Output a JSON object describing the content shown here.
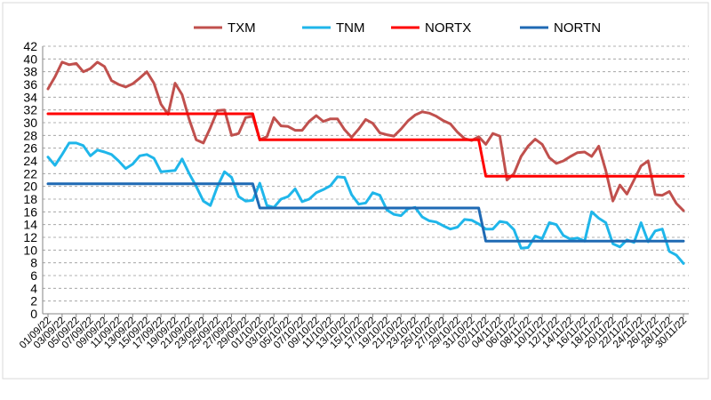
{
  "chart_data": {
    "type": "line",
    "title": "",
    "xlabel": "",
    "ylabel": "",
    "ylim": [
      0,
      42
    ],
    "yticks": [
      0,
      2,
      4,
      6,
      8,
      10,
      12,
      14,
      16,
      18,
      20,
      22,
      24,
      26,
      28,
      30,
      32,
      34,
      36,
      38,
      40,
      42
    ],
    "grid": "horizontal dashed",
    "legend_position": "top",
    "x_ticks": [
      "01/09/22",
      "03/09/22",
      "05/09/22",
      "07/09/22",
      "09/09/22",
      "11/09/22",
      "13/09/22",
      "15/09/22",
      "17/09/22",
      "19/09/22",
      "21/09/22",
      "23/09/22",
      "25/09/22",
      "27/09/22",
      "29/09/22",
      "01/10/22",
      "03/10/22",
      "05/10/22",
      "07/10/22",
      "09/10/22",
      "11/10/22",
      "13/10/22",
      "15/10/22",
      "17/10/22",
      "19/10/22",
      "21/10/22",
      "23/10/22",
      "25/10/22",
      "27/10/22",
      "29/10/22",
      "31/10/22",
      "02/11/22",
      "04/11/22",
      "06/11/22",
      "08/11/22",
      "10/11/22",
      "12/11/22",
      "14/11/22",
      "16/11/22",
      "18/11/22",
      "20/11/22",
      "22/11/22",
      "24/11/22",
      "26/11/22",
      "28/11/22",
      "30/11/22"
    ],
    "x_start": "01/09/22",
    "x_step_days": 1,
    "series": [
      {
        "name": "TXM",
        "color": "#c0504d",
        "width": 3,
        "values": [
          35.3,
          37.2,
          39.5,
          39.1,
          39.3,
          38.0,
          38.5,
          39.5,
          38.8,
          36.6,
          36.0,
          35.6,
          36.1,
          37.0,
          38.0,
          36.2,
          32.9,
          31.3,
          36.2,
          34.4,
          30.5,
          27.3,
          26.8,
          29.2,
          31.9,
          32.0,
          28.0,
          28.3,
          30.8,
          31.0,
          27.3,
          27.8,
          30.8,
          29.5,
          29.4,
          28.8,
          28.8,
          30.2,
          31.1,
          30.2,
          30.6,
          30.6,
          28.9,
          27.7,
          29.0,
          30.5,
          29.9,
          28.4,
          28.1,
          27.9,
          29.0,
          30.3,
          31.2,
          31.7,
          31.5,
          31.0,
          30.3,
          29.8,
          28.5,
          27.5,
          27.2,
          27.8,
          26.6,
          28.3,
          27.9,
          21.0,
          22.0,
          24.7,
          26.3,
          27.4,
          26.6,
          24.5,
          23.6,
          24.0,
          24.7,
          25.3,
          25.4,
          24.7,
          26.3,
          22.5,
          17.7,
          20.2,
          18.8,
          21.0,
          23.2,
          24.0,
          18.7,
          18.6,
          19.2,
          17.3,
          16.2
        ]
      },
      {
        "name": "TNM",
        "color": "#1fb6ea",
        "width": 3,
        "values": [
          24.6,
          23.3,
          25.0,
          26.8,
          26.8,
          26.4,
          24.8,
          25.7,
          25.4,
          25.0,
          24.0,
          22.8,
          23.5,
          24.8,
          25.0,
          24.4,
          22.3,
          22.4,
          22.5,
          24.3,
          22.0,
          20.0,
          17.7,
          17.0,
          20.0,
          22.3,
          21.4,
          18.4,
          17.7,
          17.8,
          20.5,
          17.0,
          16.7,
          18.0,
          18.4,
          19.6,
          17.6,
          18.0,
          19.0,
          19.5,
          20.1,
          21.5,
          21.4,
          18.7,
          17.2,
          17.4,
          19.0,
          18.6,
          16.3,
          15.6,
          15.4,
          16.5,
          16.7,
          15.2,
          14.6,
          14.4,
          13.8,
          13.3,
          13.6,
          14.8,
          14.7,
          14.1,
          13.3,
          13.3,
          14.5,
          14.3,
          13.2,
          10.3,
          10.4,
          12.2,
          11.8,
          14.3,
          14.0,
          12.3,
          11.7,
          11.9,
          11.4,
          16.0,
          15.0,
          14.3,
          11.0,
          10.5,
          11.6,
          11.2,
          14.3,
          11.3,
          13.0,
          13.3,
          9.8,
          9.2,
          7.9
        ]
      },
      {
        "name": "NORTX",
        "color": "#ff0000",
        "width": 3,
        "values": [
          31.4,
          31.4,
          31.4,
          31.4,
          31.4,
          31.4,
          31.4,
          31.4,
          31.4,
          31.4,
          31.4,
          31.4,
          31.4,
          31.4,
          31.4,
          31.4,
          31.4,
          31.4,
          31.4,
          31.4,
          31.4,
          31.4,
          31.4,
          31.4,
          31.4,
          31.4,
          31.4,
          31.4,
          31.4,
          31.4,
          27.3,
          27.3,
          27.3,
          27.3,
          27.3,
          27.3,
          27.3,
          27.3,
          27.3,
          27.3,
          27.3,
          27.3,
          27.3,
          27.3,
          27.3,
          27.3,
          27.3,
          27.3,
          27.3,
          27.3,
          27.3,
          27.3,
          27.3,
          27.3,
          27.3,
          27.3,
          27.3,
          27.3,
          27.3,
          27.3,
          27.3,
          27.3,
          21.6,
          21.6,
          21.6,
          21.6,
          21.6,
          21.6,
          21.6,
          21.6,
          21.6,
          21.6,
          21.6,
          21.6,
          21.6,
          21.6,
          21.6,
          21.6,
          21.6,
          21.6,
          21.6,
          21.6,
          21.6,
          21.6,
          21.6,
          21.6,
          21.6,
          21.6,
          21.6,
          21.6,
          21.6
        ]
      },
      {
        "name": "NORTN",
        "color": "#1f6ab4",
        "width": 3,
        "values": [
          20.4,
          20.4,
          20.4,
          20.4,
          20.4,
          20.4,
          20.4,
          20.4,
          20.4,
          20.4,
          20.4,
          20.4,
          20.4,
          20.4,
          20.4,
          20.4,
          20.4,
          20.4,
          20.4,
          20.4,
          20.4,
          20.4,
          20.4,
          20.4,
          20.4,
          20.4,
          20.4,
          20.4,
          20.4,
          20.4,
          16.6,
          16.6,
          16.6,
          16.6,
          16.6,
          16.6,
          16.6,
          16.6,
          16.6,
          16.6,
          16.6,
          16.6,
          16.6,
          16.6,
          16.6,
          16.6,
          16.6,
          16.6,
          16.6,
          16.6,
          16.6,
          16.6,
          16.6,
          16.6,
          16.6,
          16.6,
          16.6,
          16.6,
          16.6,
          16.6,
          16.6,
          16.6,
          11.4,
          11.4,
          11.4,
          11.4,
          11.4,
          11.4,
          11.4,
          11.4,
          11.4,
          11.4,
          11.4,
          11.4,
          11.4,
          11.4,
          11.4,
          11.4,
          11.4,
          11.4,
          11.4,
          11.4,
          11.4,
          11.4,
          11.4,
          11.4,
          11.4,
          11.4,
          11.4,
          11.4,
          11.4
        ]
      }
    ]
  }
}
